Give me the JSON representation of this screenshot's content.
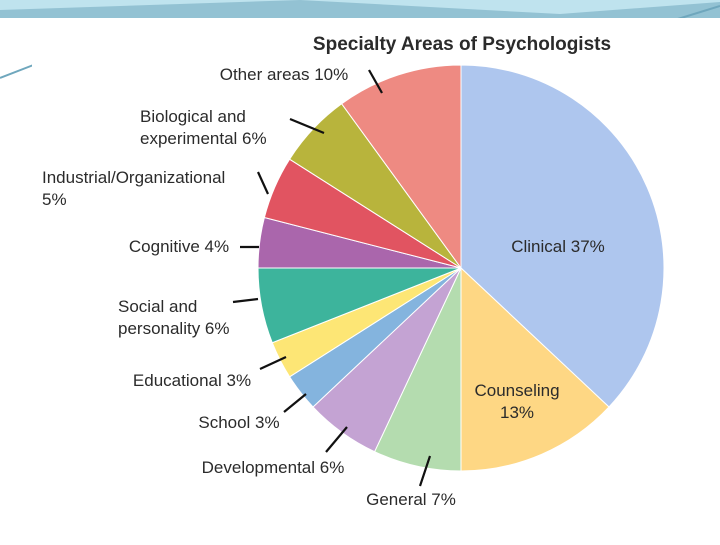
{
  "colors": {
    "background": "#ffffff",
    "frame_band": "#bfe3ee",
    "frame_band_dark": "#6fa7bd",
    "card": "#ffffff",
    "label_text": "#2b2b2b",
    "leader": "#111111"
  },
  "chart_data": {
    "type": "pie",
    "title": "Specialty Areas of Psychologists",
    "start": "12 o'clock",
    "direction": "clockwise",
    "slices": [
      {
        "label": "Clinical 37%",
        "value": 37,
        "color": "#aec6ee"
      },
      {
        "label": "Counseling 13%",
        "value": 13,
        "color": "#fed784"
      },
      {
        "label": "General 7%",
        "value": 7,
        "color": "#b4dcaf"
      },
      {
        "label": "Developmental 6%",
        "value": 6,
        "color": "#c4a3d3"
      },
      {
        "label": "School 3%",
        "value": 3,
        "color": "#84b4de"
      },
      {
        "label": "Educational 3%",
        "value": 3,
        "color": "#fde675"
      },
      {
        "label": "Social and personality 6%",
        "value": 6,
        "color": "#3db49c"
      },
      {
        "label": "Cognitive 4%",
        "value": 4,
        "color": "#aa66ac"
      },
      {
        "label": "Industrial/Organizational 5%",
        "value": 5,
        "color": "#e15461"
      },
      {
        "label": "Biological and experimental 6%",
        "value": 6,
        "color": "#b8b43c"
      },
      {
        "label": "Other areas 10%",
        "value": 10,
        "color": "#ee8a82"
      }
    ],
    "label_lines": [
      [
        "Clinical 37%"
      ],
      [
        "Counseling",
        "13%"
      ],
      [
        "General 7%"
      ],
      [
        "Developmental 6%"
      ],
      [
        "School 3%"
      ],
      [
        "Educational 3%"
      ],
      [
        "Social and",
        "personality 6%"
      ],
      [
        "Cognitive 4%"
      ],
      [
        "Industrial/Organizational",
        "5%"
      ],
      [
        "Biological and",
        "experimental 6%"
      ],
      [
        "Other areas 10%"
      ]
    ]
  }
}
